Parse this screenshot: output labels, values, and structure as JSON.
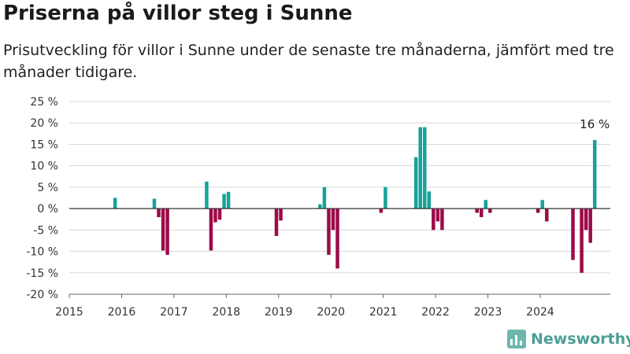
{
  "title": "Priserna på villor steg i Sunne",
  "subtitle": "Prisutveckling för villor i Sunne under de senaste tre månaderna, jämfört med tre månader tidigare.",
  "brand": "Newsworthy",
  "colors": {
    "positive": "#15a39a",
    "negative": "#9c0b48",
    "grid": "#d9d9d9",
    "zero": "#333333",
    "brand": "#4a9f95"
  },
  "chart_data": {
    "type": "bar",
    "x_unit": "month",
    "ylim": [
      -20,
      25
    ],
    "yticks": [
      -20,
      -15,
      -10,
      -5,
      0,
      5,
      10,
      15,
      20,
      25
    ],
    "ytick_labels": [
      "-20 %",
      "-15 %",
      "-10 %",
      "-5 %",
      "0 %",
      "5 %",
      "10 %",
      "15 %",
      "20 %",
      "25 %"
    ],
    "xticks": [
      "2015",
      "2016",
      "2017",
      "2018",
      "2019",
      "2020",
      "2021",
      "2022",
      "2023",
      "2024"
    ],
    "x": [
      "2015-11",
      "2016-08",
      "2016-09",
      "2016-10",
      "2016-11",
      "2017-08",
      "2017-09",
      "2017-10",
      "2017-11",
      "2017-12",
      "2018-01",
      "2018-12",
      "2019-01",
      "2019-10",
      "2019-11",
      "2019-12",
      "2020-01",
      "2020-02",
      "2020-12",
      "2021-01",
      "2021-08",
      "2021-09",
      "2021-10",
      "2021-11",
      "2021-12",
      "2022-01",
      "2022-02",
      "2022-10",
      "2022-11",
      "2022-12",
      "2023-01",
      "2023-03",
      "2023-12",
      "2024-01",
      "2024-02",
      "2024-08",
      "2024-10",
      "2024-11",
      "2024-12",
      "2025-01"
    ],
    "values": [
      2.5,
      2.3,
      -2,
      -9.8,
      -10.8,
      6.3,
      -9.8,
      -3.2,
      -2.6,
      3.4,
      3.9,
      -6.4,
      -2.8,
      1,
      5,
      -10.8,
      -5,
      -14,
      -1,
      5,
      12,
      19,
      19,
      4,
      -5,
      -3,
      -5,
      -1,
      -2,
      2,
      -1,
      0,
      -1,
      2,
      -3,
      -12,
      -15,
      -5,
      -8,
      16
    ],
    "annotation": {
      "x": "2025-01",
      "label": "16 %"
    }
  }
}
